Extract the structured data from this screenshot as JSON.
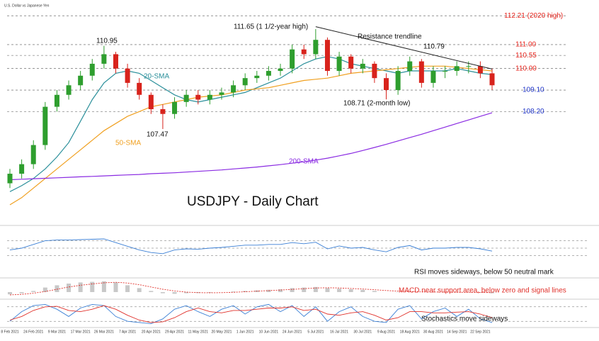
{
  "chart_data": [
    {
      "type": "candlestick",
      "title": "USDJPY - Daily Chart",
      "subtitle": "U.S. Dollar vs Japanese Yen",
      "categories": [
        "8 Feb 2021",
        null,
        "24 Feb 2021",
        null,
        "9 Mar 2021",
        null,
        "17 Mar 2021",
        null,
        "26 Mar 2021",
        null,
        "7 Apr 2021",
        null,
        "20 Apr 2021",
        null,
        "29 Apr 2021",
        null,
        "11 May 2021",
        null,
        "20 May 2021",
        null,
        "1 Jun 2021",
        null,
        "10 Jun 2021",
        null,
        "24 Jun 2021",
        null,
        "5 Jul 2021",
        null,
        "16 Jul 2021",
        null,
        "30 Jul 2021",
        null,
        "9 Aug 2021",
        null,
        "18 Aug 2021",
        null,
        "30 Aug 2021",
        null,
        "14 Sep 2021",
        null,
        "22 Sep 2021",
        null
      ],
      "open": [
        105.2,
        105.6,
        106.0,
        106.8,
        108.4,
        108.9,
        109.3,
        109.7,
        110.2,
        110.6,
        110.0,
        109.4,
        108.9,
        108.3,
        108.1,
        108.6,
        108.9,
        108.7,
        108.9,
        109.0,
        109.3,
        109.6,
        109.7,
        109.9,
        110.0,
        110.8,
        110.6,
        111.2,
        109.9,
        110.5,
        110.0,
        110.2,
        109.6,
        109.1,
        109.9,
        110.3,
        109.4,
        109.9,
        109.9,
        110.1,
        110.1,
        109.8
      ],
      "high": [
        105.8,
        106.2,
        107.0,
        108.6,
        109.1,
        109.5,
        109.9,
        110.4,
        110.95,
        110.7,
        110.2,
        109.6,
        109.0,
        108.5,
        108.8,
        109.1,
        109.1,
        109.1,
        109.2,
        109.5,
        109.8,
        109.9,
        110.1,
        110.2,
        111.0,
        111.0,
        111.65,
        111.3,
        110.7,
        110.6,
        110.4,
        110.3,
        109.8,
        110.1,
        110.5,
        110.4,
        110.1,
        110.1,
        110.3,
        110.3,
        110.3,
        110.0
      ],
      "low": [
        105.0,
        105.4,
        105.8,
        106.6,
        108.2,
        108.7,
        109.1,
        109.5,
        110.0,
        109.8,
        109.2,
        108.7,
        108.1,
        107.47,
        107.9,
        108.4,
        108.5,
        108.5,
        108.7,
        108.8,
        109.1,
        109.4,
        109.5,
        109.7,
        109.8,
        110.4,
        110.4,
        109.7,
        109.7,
        109.8,
        109.8,
        109.4,
        108.71,
        108.9,
        109.7,
        109.2,
        109.2,
        109.6,
        109.7,
        109.8,
        109.6,
        109.1
      ],
      "close": [
        105.6,
        106.0,
        106.8,
        108.4,
        108.9,
        109.3,
        109.7,
        110.2,
        110.6,
        110.0,
        109.4,
        108.9,
        108.3,
        108.1,
        108.6,
        108.9,
        108.7,
        108.9,
        109.0,
        109.3,
        109.6,
        109.7,
        109.9,
        110.0,
        110.8,
        110.6,
        111.2,
        109.9,
        110.5,
        110.0,
        110.2,
        109.6,
        109.1,
        109.9,
        110.3,
        109.4,
        109.9,
        109.9,
        110.1,
        110.1,
        109.8,
        109.3
      ],
      "up_color": "#2e9e2e",
      "down_color": "#d8231c",
      "series": [
        {
          "name": "20-SMA",
          "color": "#2a8f9a",
          "values": [
            104.85,
            105.1,
            105.4,
            105.8,
            106.3,
            106.9,
            107.8,
            108.7,
            109.4,
            109.8,
            109.9,
            109.8,
            109.5,
            109.2,
            108.9,
            108.7,
            108.6,
            108.7,
            108.8,
            108.9,
            109.0,
            109.2,
            109.4,
            109.6,
            109.9,
            110.2,
            110.4,
            110.5,
            110.4,
            110.2,
            110.1,
            110.0,
            109.9,
            109.8,
            109.9,
            109.9,
            109.9,
            109.9,
            110.0,
            109.9,
            109.8,
            109.75
          ]
        },
        {
          "name": "50-SMA",
          "color": "#f0a020",
          "values": [
            104.3,
            104.6,
            105.0,
            105.4,
            105.8,
            106.2,
            106.6,
            107.0,
            107.4,
            107.7,
            108.0,
            108.2,
            108.4,
            108.5,
            108.6,
            108.7,
            108.8,
            108.85,
            108.9,
            109.0,
            109.1,
            109.15,
            109.2,
            109.3,
            109.4,
            109.5,
            109.55,
            109.6,
            109.7,
            109.8,
            109.85,
            109.9,
            109.95,
            110.0,
            110.05,
            110.1,
            110.1,
            110.1,
            110.05,
            110.0,
            109.95,
            109.9
          ]
        },
        {
          "name": "200-SMA",
          "color": "#8a2be2",
          "values": [
            105.35,
            105.37,
            105.39,
            105.41,
            105.43,
            105.45,
            105.47,
            105.49,
            105.51,
            105.53,
            105.55,
            105.57,
            105.6,
            105.62,
            105.64,
            105.67,
            105.7,
            105.73,
            105.76,
            105.8,
            105.84,
            105.88,
            105.93,
            105.98,
            106.04,
            106.1,
            106.17,
            106.25,
            106.35,
            106.45,
            106.57,
            106.7,
            106.83,
            106.97,
            107.11,
            107.25,
            107.4,
            107.55,
            107.7,
            107.85,
            108.0,
            108.15
          ]
        }
      ],
      "trendline": {
        "name": "Resistance trendline",
        "x": [
          26,
          41
        ],
        "y": [
          111.75,
          109.98
        ],
        "color": "#222222"
      },
      "levels": [
        {
          "value": 112.21,
          "label": "112.21 (2020 high)",
          "color": "#e8251d"
        },
        {
          "value": 111.0,
          "label": "111.00",
          "color": "#e8251d"
        },
        {
          "value": 110.55,
          "label": "110.55",
          "color": "#e8251d"
        },
        {
          "value": 110.0,
          "label": "110.00",
          "color": "#e8251d"
        },
        {
          "value": 109.1,
          "label": "109.10",
          "color": "#1f35c9"
        },
        {
          "value": 108.2,
          "label": "108.20",
          "color": "#1f35c9"
        }
      ],
      "annotations": [
        "110.95",
        "107.47",
        "111.65 (1 1/2-year high)",
        "110.79",
        "108.71 (2-month low)"
      ],
      "ylim": [
        104.0,
        112.6
      ]
    },
    {
      "type": "line",
      "caption": "RSI moves sideways, below 50 neutral mark",
      "ylim": [
        0,
        100
      ],
      "levels": [
        30,
        50,
        70
      ],
      "series": [
        {
          "color": "#3a7fd5",
          "values": [
            45,
            50,
            60,
            70,
            72,
            72,
            73,
            74,
            75,
            65,
            55,
            45,
            38,
            35,
            45,
            48,
            47,
            50,
            52,
            55,
            58,
            58,
            60,
            60,
            65,
            62,
            66,
            48,
            56,
            50,
            52,
            45,
            40,
            52,
            57,
            45,
            50,
            50,
            52,
            52,
            48,
            42
          ]
        }
      ]
    },
    {
      "type": "macd",
      "caption": "MACD near support area, below zero and signal lines",
      "ylim": [
        -0.5,
        1.0
      ],
      "values": [
        -0.2,
        -0.1,
        0.1,
        0.4,
        0.6,
        0.75,
        0.85,
        0.9,
        0.95,
        0.85,
        0.6,
        0.35,
        0.1,
        -0.1,
        -0.15,
        -0.1,
        -0.08,
        -0.05,
        0,
        0.05,
        0.1,
        0.15,
        0.2,
        0.25,
        0.35,
        0.4,
        0.45,
        0.35,
        0.3,
        0.25,
        0.2,
        0.1,
        0,
        -0.02,
        0.02,
        0,
        -0.02,
        -0.03,
        -0.02,
        -0.03,
        -0.05,
        -0.1
      ],
      "color": "#c8c8c8",
      "series": [
        {
          "color": "#e0302a",
          "values": [
            -0.25,
            -0.2,
            -0.1,
            0.05,
            0.25,
            0.45,
            0.6,
            0.72,
            0.82,
            0.86,
            0.8,
            0.65,
            0.45,
            0.25,
            0.1,
            0,
            -0.05,
            -0.06,
            -0.05,
            -0.02,
            0.03,
            0.08,
            0.13,
            0.18,
            0.24,
            0.3,
            0.36,
            0.38,
            0.36,
            0.32,
            0.27,
            0.21,
            0.14,
            0.08,
            0.04,
            0.02,
            0.01,
            -0.01,
            -0.02,
            -0.02,
            -0.03,
            -0.05
          ]
        }
      ]
    },
    {
      "type": "line",
      "caption": "Stochastics move sideways",
      "ylim": [
        0,
        100
      ],
      "levels": [
        20,
        80
      ],
      "series": [
        {
          "color": "#3a7fd5",
          "values": [
            20,
            60,
            85,
            90,
            70,
            40,
            75,
            90,
            85,
            40,
            20,
            15,
            10,
            30,
            70,
            85,
            60,
            40,
            70,
            85,
            50,
            80,
            90,
            60,
            85,
            40,
            80,
            20,
            60,
            80,
            40,
            20,
            15,
            70,
            85,
            30,
            60,
            75,
            40,
            70,
            30,
            15
          ]
        },
        {
          "color": "#e0302a",
          "values": [
            25,
            40,
            65,
            80,
            82,
            65,
            60,
            70,
            85,
            70,
            45,
            25,
            15,
            18,
            35,
            60,
            75,
            60,
            55,
            65,
            65,
            70,
            75,
            75,
            80,
            65,
            70,
            50,
            45,
            55,
            60,
            45,
            25,
            35,
            60,
            60,
            55,
            55,
            58,
            60,
            50,
            35
          ]
        }
      ]
    }
  ]
}
